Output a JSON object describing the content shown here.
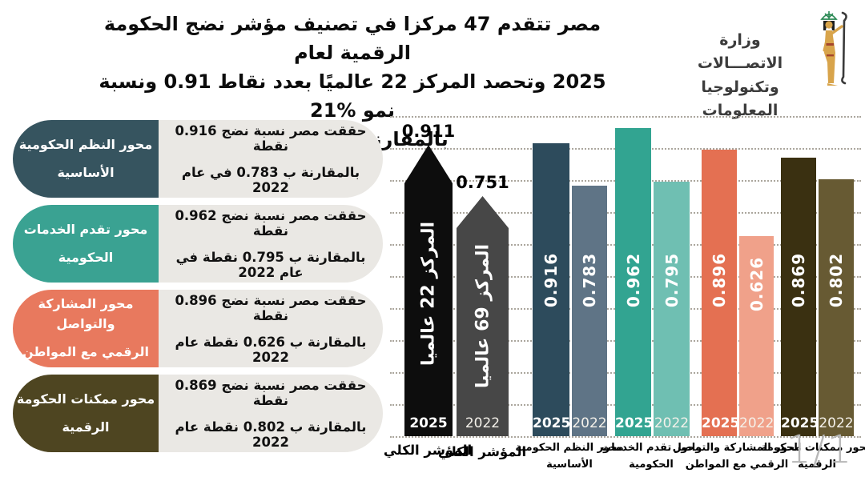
{
  "header": {
    "title_lines": [
      "مصر تتقدم 47 مركزا في تصنيف مؤشر نضج الحكومة الرقمية لعام",
      "2025 وتحصد المركز 22 عالميًا بعدد نقاط 0.91  ونسبة نمو %21",
      "بالمقارنة بعام 2022"
    ],
    "logo": {
      "ministry_line1": "وزارة الاتصـــالات",
      "ministry_line2": "وتكنولوجيا المعلومات",
      "figure_colors": {
        "body": "#d8a44b",
        "hair": "#1f1f1f",
        "staff": "#3a3a3a",
        "emblem": "#2e8b57"
      }
    }
  },
  "sidebar": {
    "items": [
      {
        "axis_line1": "محور النظم الحكومية",
        "axis_line2": "الأساسية",
        "desc_line1": "حققت مصر نسبة نضج 0.916 نقطة",
        "desc_line2": "بالمقارنة ب 0.783 في عام 2022",
        "color": "#36545f"
      },
      {
        "axis_line1": "محور تقدم الخدمات",
        "axis_line2": "الحكومية",
        "desc_line1": "حققت مصر نسبة نضج 0.962 نقطة",
        "desc_line2": "بالمقارنة ب 0.795 نقطة في عام 2022",
        "color": "#3aa292"
      },
      {
        "axis_line1": "محور المشاركة والتواصل",
        "axis_line2": "الرقمي مع المواطن",
        "desc_line1": "حققت مصر نسبة نضج 0.896 نقطة",
        "desc_line2": "بالمقارنة ب 0.626 نقطة عام 2022",
        "color": "#e8795e"
      },
      {
        "axis_line1": "محور ممكنات الحكومة",
        "axis_line2": "الرقمية",
        "desc_line1": "حققت مصر نسبة نضج 0.869 نقطة",
        "desc_line2": "بالمقارنة ب 0.802 نقطة عام 2022",
        "color": "#4e4521"
      }
    ]
  },
  "chart_data": {
    "type": "bar",
    "title": "",
    "xlabel": "",
    "ylabel": "",
    "ylim": [
      0,
      1.0
    ],
    "grid": true,
    "gridline_step": 0.1,
    "legend_position": "none",
    "categories": [
      "المؤشر الكلي",
      "محور النظم الحكومية الأساسية",
      "محور تقدم الخدمات الحكومية",
      "محور المشاركة والتواصل الرقمي مع المواطن",
      "محور ممكنات الحكومة الرقمية"
    ],
    "series": [
      {
        "name": "2025",
        "values": [
          0.911,
          0.916,
          0.962,
          0.896,
          0.869
        ]
      },
      {
        "name": "2022",
        "values": [
          0.751,
          0.783,
          0.795,
          0.626,
          0.802
        ]
      }
    ],
    "rank_annotations": [
      "المركز 22 عالميا",
      "المركز 69 عالميا"
    ],
    "bars": [
      {
        "value": 0.911,
        "value_label": "0.911",
        "year": "2025",
        "color": "#0d0d0d",
        "shape": "pencil",
        "value_label_pos": "above",
        "inner_label": "المركز 22 عالميا"
      },
      {
        "value": 0.751,
        "value_label": "0.751",
        "year": "2022",
        "color": "#474747",
        "shape": "pencil",
        "value_label_pos": "above",
        "inner_label": "المركز 69 عالميا"
      },
      {
        "value": 0.916,
        "value_label": "0.916",
        "year": "2025",
        "color": "#2d4b5c",
        "shape": "rect",
        "value_label_pos": "inside"
      },
      {
        "value": 0.783,
        "value_label": "0.783",
        "year": "2022",
        "color": "#5f7486",
        "shape": "rect",
        "value_label_pos": "inside"
      },
      {
        "value": 0.962,
        "value_label": "0.962",
        "year": "2025",
        "color": "#32a491",
        "shape": "rect",
        "value_label_pos": "inside"
      },
      {
        "value": 0.795,
        "value_label": "0.795",
        "year": "2022",
        "color": "#6fbfb2",
        "shape": "rect",
        "value_label_pos": "inside"
      },
      {
        "value": 0.896,
        "value_label": "0.896",
        "year": "2025",
        "color": "#e47052",
        "shape": "rect",
        "value_label_pos": "inside"
      },
      {
        "value": 0.626,
        "value_label": "0.626",
        "year": "2022",
        "color": "#f0a18a",
        "shape": "rect",
        "value_label_pos": "inside"
      },
      {
        "value": 0.869,
        "value_label": "0.869",
        "year": "2025",
        "color": "#3a3011",
        "shape": "rect",
        "value_label_pos": "inside"
      },
      {
        "value": 0.802,
        "value_label": "0.802",
        "year": "2022",
        "color": "#675a33",
        "shape": "rect",
        "value_label_pos": "inside"
      }
    ],
    "axis_labels": [
      {
        "lines": [
          "المؤشر الكلي"
        ]
      },
      {
        "lines": [
          "المؤشر الكلي"
        ]
      },
      {
        "lines": [
          "محور النظم الحكومية",
          "الأساسية"
        ]
      },
      {
        "lines": [
          "محور تقدم الخدمات",
          "الحكومية"
        ]
      },
      {
        "lines": [
          "محور المشاركة والتواصل",
          "الرقمي مع المواطن"
        ]
      },
      {
        "lines": [
          "محور ممكنات الحكومة",
          "الرقمية"
        ]
      }
    ]
  },
  "watermark": "1/1"
}
